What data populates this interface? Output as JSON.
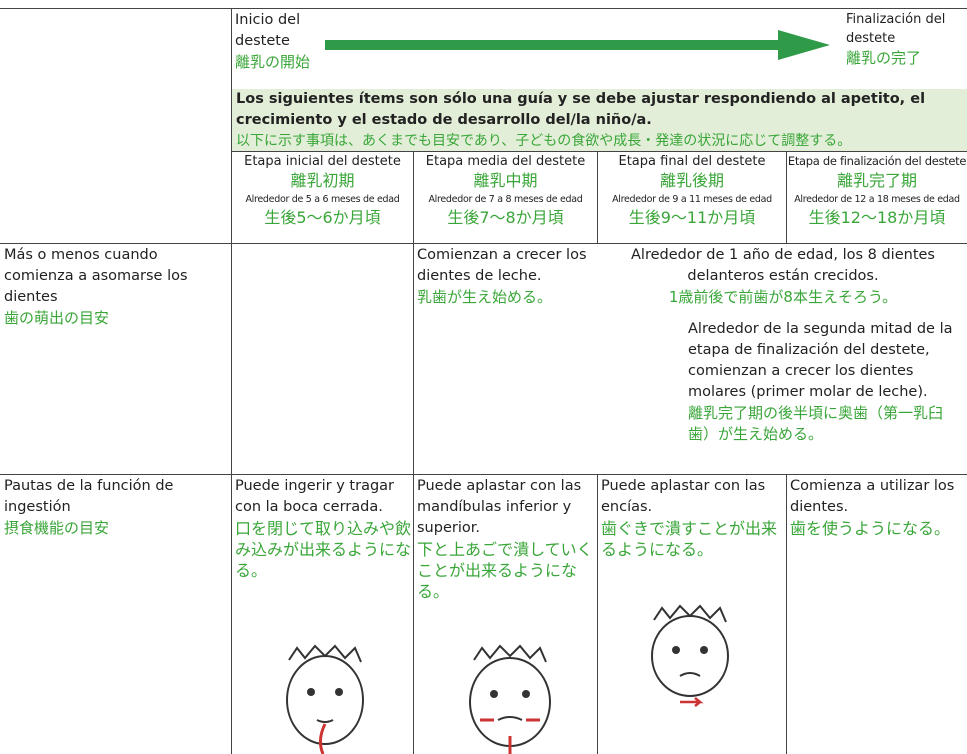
{
  "header": {
    "start": {
      "es": "Inicio del destete",
      "ja": "離乳の開始"
    },
    "end": {
      "es": "Finalización del destete",
      "ja": "離乳の完了"
    }
  },
  "note": {
    "es": "Los siguientes ítems son sólo una guía y se debe ajustar respondiendo al apetito, el crecimiento y el estado de desarrollo del/la niño/a.",
    "ja": "以下に示す事項は、あくまでも目安であり、子どもの食欲や成長・発達の状況に応じて調整する。"
  },
  "stages": [
    {
      "name": "Etapa inicial del destete",
      "name_ja": "離乳初期",
      "age": "Alrededor de 5 a 6 meses de edad",
      "age_ja": "生後5〜6か月頃"
    },
    {
      "name": "Etapa media del destete",
      "name_ja": "離乳中期",
      "age": "Alrededor de 7 a 8 meses de edad",
      "age_ja": "生後7〜8か月頃"
    },
    {
      "name": "Etapa final del destete",
      "name_ja": "離乳後期",
      "age": "Alrededor de 9 a 11 meses de edad",
      "age_ja": "生後9〜11か月頃"
    },
    {
      "name": "Etapa de finalización del destete",
      "name_ja": "離乳完了期",
      "age": "Alrededor de 12 a 18 meses de edad",
      "age_ja": "生後12〜18か月頃"
    }
  ],
  "teeth": {
    "label": "Más o menos cuando comienza a asomarse los dientes",
    "label_ja": "歯の萌出の目安",
    "middle": {
      "es": "Comienzan a crecer los dientes de leche.",
      "ja": "乳歯が生え始める。"
    },
    "late": {
      "es": "Alrededor de 1 año de edad, los 8 dientes delanteros están crecidos.",
      "ja": "1歳前後で前歯が8本生えそろう。"
    },
    "completion": {
      "es": "Alrededor de la segunda mitad de la etapa de finalización del destete, comienzan a crecer los dientes molares (primer molar de leche).",
      "ja": "離乳完了期の後半頃に奥歯（第一乳臼歯）が生え始める。"
    }
  },
  "ingestion": {
    "label": "Pautas de la función de ingestión",
    "label_ja": "摂食機能の目安",
    "cells": [
      {
        "es": "Puede ingerir y tragar con la boca cerrada.",
        "ja": "口を閉じて取り込みや飲み込みが出来るようになる。"
      },
      {
        "es": "Puede aplastar con las mandíbulas inferior y superior.",
        "ja": "下と上あごで潰していくことが出来るようになる。"
      },
      {
        "es": "Puede aplastar con las encías.",
        "ja": "歯ぐきで潰すことが出来るようになる。"
      },
      {
        "es": "Comienza a utilizar los dientes.",
        "ja": "歯を使うようになる。"
      }
    ]
  }
}
